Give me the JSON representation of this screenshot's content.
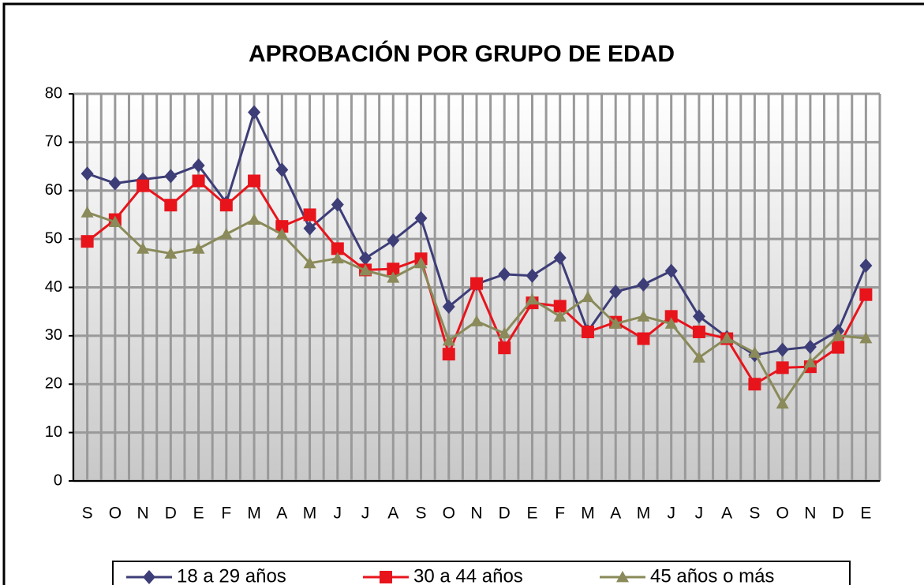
{
  "chart_data": {
    "type": "line",
    "title": "APROBACIÓN POR GRUPO DE EDAD",
    "categories": [
      "S",
      "O",
      "N",
      "D",
      "E",
      "F",
      "M",
      "A",
      "M",
      "J",
      "J",
      "A",
      "S",
      "O",
      "N",
      "D",
      "E",
      "F",
      "M",
      "A",
      "M",
      "J",
      "J",
      "A",
      "S",
      "O",
      "N",
      "D",
      "E"
    ],
    "series": [
      {
        "name": "18 a 29 años",
        "color": "#3d3d78",
        "marker": "diamond",
        "values": [
          63.5,
          61.5,
          62.3,
          63,
          65.2,
          57.5,
          76.2,
          64.3,
          52.2,
          57.1,
          46,
          49.7,
          54.3,
          36,
          40.7,
          42.7,
          42.4,
          46.1,
          30.9,
          39.1,
          40.6,
          43.4,
          34,
          29.7,
          26,
          27.1,
          27.7,
          31,
          44.5
        ]
      },
      {
        "name": "30 a 44 años",
        "color": "#e8141c",
        "marker": "square",
        "values": [
          49.5,
          54,
          61,
          57,
          62,
          57,
          62,
          52.6,
          55,
          48,
          43.6,
          43.8,
          45.9,
          26.2,
          40.8,
          27.5,
          36.8,
          36.1,
          30.8,
          32.8,
          29.4,
          34,
          30.8,
          29.4,
          20,
          23.4,
          23.6,
          27.6,
          38.5
        ]
      },
      {
        "name": "45 años o más",
        "color": "#8a8a5a",
        "marker": "triangle",
        "values": [
          55.5,
          53.5,
          48,
          47,
          48,
          51,
          54,
          51,
          45,
          46,
          43.5,
          42,
          45,
          29,
          33,
          30.5,
          37.5,
          34,
          38,
          32.5,
          34,
          32.5,
          25.5,
          29.5,
          26.5,
          16,
          24.5,
          30,
          29.5
        ]
      }
    ],
    "ylim": [
      0,
      80
    ],
    "yticks": [
      0,
      10,
      20,
      30,
      40,
      50,
      60,
      70,
      80
    ],
    "grid": true,
    "legend": "bottom"
  }
}
